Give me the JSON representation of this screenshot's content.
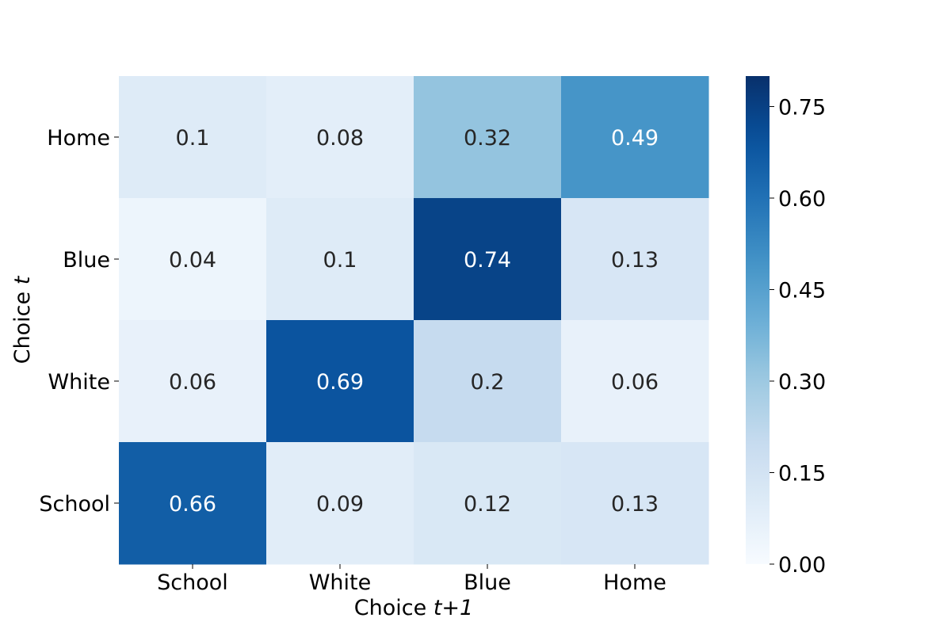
{
  "chart_data": {
    "type": "heatmap",
    "x_categories": [
      "School",
      "White",
      "Blue",
      "Home"
    ],
    "y_categories": [
      "Home",
      "Blue",
      "White",
      "School"
    ],
    "values": [
      [
        0.1,
        0.08,
        0.32,
        0.49
      ],
      [
        0.04,
        0.1,
        0.74,
        0.13
      ],
      [
        0.06,
        0.69,
        0.2,
        0.06
      ],
      [
        0.66,
        0.09,
        0.12,
        0.13
      ]
    ],
    "cell_labels": [
      [
        "0.1",
        "0.08",
        "0.32",
        "0.49"
      ],
      [
        "0.04",
        "0.1",
        "0.74",
        "0.13"
      ],
      [
        "0.06",
        "0.69",
        "0.2",
        "0.06"
      ],
      [
        "0.66",
        "0.09",
        "0.12",
        "0.13"
      ]
    ],
    "xlabel": {
      "prefix": "Choice ",
      "math": "t+1"
    },
    "ylabel": {
      "prefix": "Choice ",
      "math": "t"
    },
    "colorbar": {
      "range": [
        0,
        0.8
      ],
      "ticks": [
        0,
        0.15,
        0.3,
        0.45,
        0.6,
        0.75
      ],
      "tick_labels": [
        "0.00",
        "0.15",
        "0.30",
        "0.45",
        "0.60",
        "0.75"
      ],
      "colormap": "Blues"
    },
    "grid": false,
    "legend": "none"
  }
}
